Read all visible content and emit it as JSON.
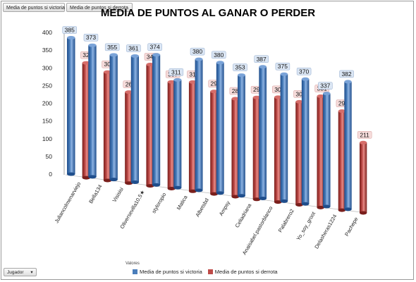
{
  "field_buttons": {
    "victoria": "Media de puntos si victoria",
    "derrota": "Media de puntos si derrota"
  },
  "bottom": {
    "field_label": "Jugador",
    "field_arrow": "▾",
    "values_label": "Valores"
  },
  "colors": {
    "victoria": "#4a7ebb",
    "derrota": "#be4b48",
    "victoria_label_bg": "#dbe6f4",
    "derrota_label_bg": "#f6dcdb"
  },
  "chart_data": {
    "type": "bar",
    "title": "MEDIA DE PUNTOS AL GANAR O PERDER",
    "categories": [
      "Juliancolmenarviejo",
      "Bella134",
      "Visisisi",
      "Oliversevilla10,5★",
      "styloropio",
      "Matica",
      "Albetsbd",
      "Ampsy",
      "Celiadriana",
      "Anaisabel.pastorblanco",
      "Palabrero2",
      "Yo_soy_groot",
      "Delasheras1224",
      "Pachepe"
    ],
    "series": [
      {
        "name": "Media de puntos si victoria",
        "values": [
          385,
          373,
          355,
          361,
          374,
          311,
          380,
          380,
          353,
          387,
          375,
          370,
          337,
          382
        ]
      },
      {
        "name": "Media de puntos si derrota",
        "values": [
          325,
          308,
          260,
          348,
          307,
          316,
          298,
          286,
          299,
          309,
          305,
          331,
          296,
          211
        ]
      }
    ],
    "ylim": [
      0,
      400
    ],
    "yticks": [
      0,
      50,
      100,
      150,
      200,
      250,
      300,
      350,
      400
    ],
    "legend": "bottom",
    "grid": false
  }
}
